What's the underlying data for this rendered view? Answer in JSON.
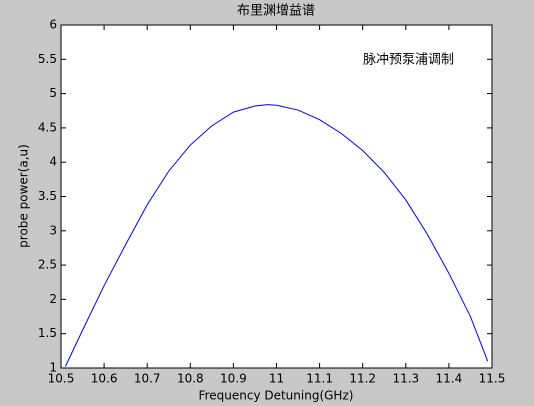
{
  "chart_data": {
    "type": "line",
    "title": "布里渊增益谱",
    "annotation": "脉冲预泵浦调制",
    "x_label": "Frequency Detuning(GHz)",
    "y_label": "probe power(a,u)",
    "x": [
      10.51,
      10.55,
      10.6,
      10.65,
      10.7,
      10.75,
      10.8,
      10.85,
      10.9,
      10.95,
      10.98,
      11.0,
      11.05,
      11.1,
      11.15,
      11.2,
      11.25,
      11.3,
      11.35,
      11.4,
      11.45,
      11.49
    ],
    "series": [
      {
        "color": "#0000ff",
        "values": [
          1.02,
          1.55,
          2.2,
          2.8,
          3.38,
          3.87,
          4.25,
          4.53,
          4.73,
          4.82,
          4.84,
          4.83,
          4.76,
          4.62,
          4.42,
          4.17,
          3.85,
          3.45,
          2.95,
          2.38,
          1.75,
          1.1
        ]
      }
    ],
    "xlim": [
      10.5,
      11.5
    ],
    "xticks": [
      10.5,
      10.6,
      10.7,
      10.8,
      10.9,
      11,
      11.1,
      11.2,
      11.3,
      11.4,
      11.5
    ],
    "ylim": [
      1,
      6
    ],
    "yticks": [
      1,
      1.5,
      2,
      2.5,
      3,
      3.5,
      4,
      4.5,
      5,
      5.5,
      6
    ],
    "grid": false
  }
}
